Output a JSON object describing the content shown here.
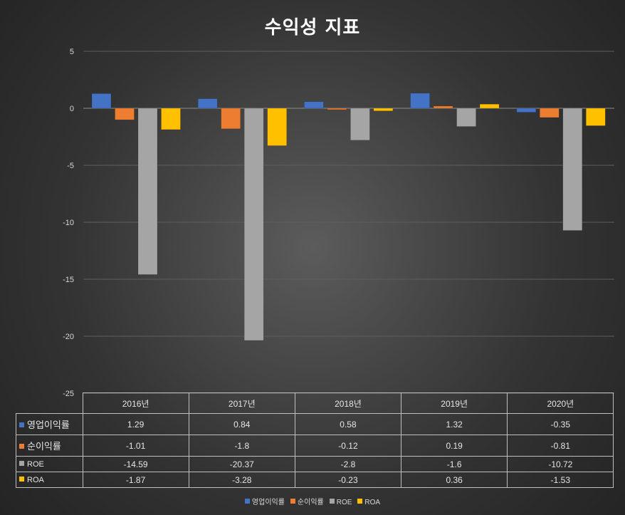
{
  "chart_data": {
    "type": "bar",
    "title": "수익성 지표",
    "categories": [
      "2016년",
      "2017년",
      "2018년",
      "2019년",
      "2020년"
    ],
    "ylim": [
      -25,
      5
    ],
    "yticks": [
      5,
      0,
      -5,
      -10,
      -15,
      -20,
      -25
    ],
    "grid": true,
    "legend_position": "bottom",
    "series": [
      {
        "name": "영업이익률",
        "color": "#4472c4",
        "values": [
          1.29,
          0.84,
          0.58,
          1.32,
          -0.35
        ]
      },
      {
        "name": "순이익률",
        "color": "#ed7d31",
        "values": [
          -1.01,
          -1.8,
          -0.12,
          0.19,
          -0.81
        ]
      },
      {
        "name": "ROE",
        "color": "#a5a5a5",
        "values": [
          -14.59,
          -20.37,
          -2.8,
          -1.6,
          -10.72
        ]
      },
      {
        "name": "ROA",
        "color": "#ffc000",
        "values": [
          -1.87,
          -3.28,
          -0.23,
          0.36,
          -1.53
        ]
      }
    ]
  }
}
